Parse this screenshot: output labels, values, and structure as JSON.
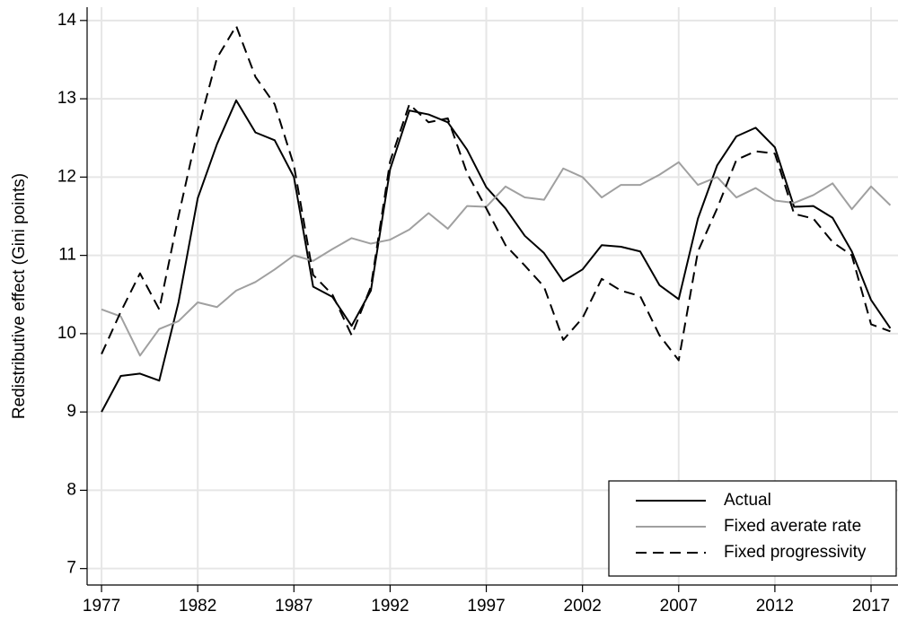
{
  "chart_data": {
    "type": "line",
    "y_label": "Redistributive effect (Gini points)",
    "x": [
      1977,
      1978,
      1979,
      1980,
      1981,
      1982,
      1983,
      1984,
      1985,
      1986,
      1987,
      1988,
      1989,
      1990,
      1991,
      1992,
      1993,
      1994,
      1995,
      1996,
      1997,
      1998,
      1999,
      2000,
      2001,
      2002,
      2003,
      2004,
      2005,
      2006,
      2007,
      2008,
      2009,
      2010,
      2011,
      2012,
      2013,
      2014,
      2015,
      2016,
      2017,
      2018
    ],
    "series": [
      {
        "name": "Actual",
        "color": "#000000",
        "style": "solid",
        "values": [
          9.0,
          9.46,
          9.49,
          9.4,
          10.4,
          11.73,
          12.42,
          12.98,
          12.57,
          12.47,
          12.0,
          10.6,
          10.47,
          10.1,
          10.55,
          12.1,
          12.85,
          12.8,
          12.7,
          12.35,
          11.87,
          11.6,
          11.25,
          11.03,
          10.67,
          10.82,
          11.13,
          11.11,
          11.05,
          10.62,
          10.44,
          11.47,
          12.15,
          12.52,
          12.63,
          12.38,
          11.62,
          11.63,
          11.48,
          11.05,
          10.43,
          10.07
        ]
      },
      {
        "name": "Fixed averate rate",
        "color": "#a0a0a0",
        "style": "solid",
        "values": [
          10.31,
          10.22,
          9.72,
          10.06,
          10.16,
          10.4,
          10.34,
          10.55,
          10.66,
          10.82,
          11.0,
          10.93,
          11.08,
          11.22,
          11.15,
          11.2,
          11.33,
          11.54,
          11.34,
          11.63,
          11.62,
          11.88,
          11.74,
          11.71,
          12.11,
          12.0,
          11.74,
          11.9,
          11.9,
          12.03,
          12.19,
          11.9,
          12.0,
          11.74,
          11.86,
          11.7,
          11.67,
          11.77,
          11.92,
          11.59,
          11.88,
          11.64
        ]
      },
      {
        "name": "Fixed progressivity",
        "color": "#000000",
        "style": "dashed",
        "values": [
          9.74,
          10.28,
          10.77,
          10.31,
          11.5,
          12.6,
          13.52,
          13.93,
          13.28,
          12.93,
          12.15,
          10.75,
          10.5,
          9.98,
          10.6,
          12.2,
          12.93,
          12.7,
          12.75,
          12.05,
          11.6,
          11.13,
          10.87,
          10.6,
          9.92,
          10.2,
          10.7,
          10.55,
          10.48,
          9.98,
          9.66,
          11.05,
          11.6,
          12.22,
          12.33,
          12.3,
          11.53,
          11.47,
          11.17,
          11.0,
          10.12,
          10.03
        ]
      }
    ],
    "xlim": [
      1976.25,
      2018.4
    ],
    "xticks": [
      1977,
      1982,
      1987,
      1992,
      1997,
      2002,
      2007,
      2012,
      2017
    ],
    "ylim": [
      6.79,
      14.17
    ],
    "yticks": [
      7,
      8,
      9,
      10,
      11,
      12,
      13,
      14
    ],
    "grid": true,
    "legend": "lower right"
  }
}
